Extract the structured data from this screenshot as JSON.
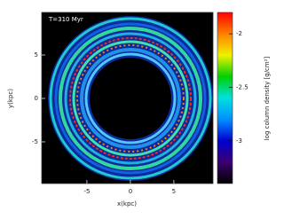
{
  "chart_data": {
    "type": "image",
    "annotation": "T=310 Myr",
    "xlabel": "x(kpc)",
    "ylabel": "y(kpc)",
    "xlim": [
      -10.2,
      9.5
    ],
    "ylim": [
      -9.8,
      9.9
    ],
    "xticks": [
      -5,
      0,
      5
    ],
    "yticks": [
      -5,
      0,
      5
    ],
    "colorbar": {
      "label": "log column density [g/cm²]",
      "lim": [
        -3.4,
        -1.8
      ],
      "ticks": [
        -3,
        -2.5,
        -2
      ],
      "colors": [
        "#000000",
        "#3a0070",
        "#0000d0",
        "#0090ff",
        "#00e0e0",
        "#00d000",
        "#f0f000",
        "#ff8000",
        "#ff0000"
      ]
    }
  }
}
